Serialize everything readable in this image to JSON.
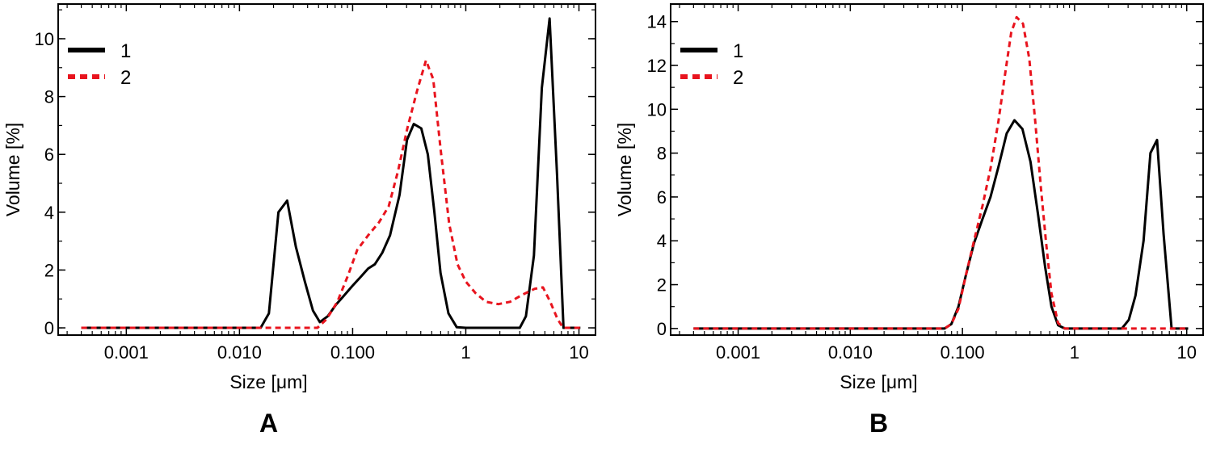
{
  "chart_data": [
    {
      "type": "line",
      "panel_label": "A",
      "xlabel": "Size [μm]",
      "ylabel": "Volume [%]",
      "xscale": "log",
      "xlim": [
        0.00025,
        14
      ],
      "ylim": [
        -0.25,
        11.2
      ],
      "xticks": [
        {
          "value": 0.001,
          "label": "0.001"
        },
        {
          "value": 0.01,
          "label": "0.010"
        },
        {
          "value": 0.1,
          "label": "0.100"
        },
        {
          "value": 1,
          "label": "1"
        },
        {
          "value": 10,
          "label": "10"
        }
      ],
      "yticks": [
        {
          "value": 0,
          "label": "0"
        },
        {
          "value": 2,
          "label": "2"
        },
        {
          "value": 4,
          "label": "4"
        },
        {
          "value": 6,
          "label": "6"
        },
        {
          "value": 8,
          "label": "8"
        },
        {
          "value": 10,
          "label": "10"
        }
      ],
      "legend_position": "top-left",
      "series": [
        {
          "name": "1",
          "color": "#000000",
          "style": "solid",
          "points": [
            [
              0.0004,
              0
            ],
            [
              0.0154,
              0
            ],
            [
              0.0182,
              0.5
            ],
            [
              0.0221,
              4.0
            ],
            [
              0.0264,
              4.4
            ],
            [
              0.0315,
              2.8
            ],
            [
              0.0378,
              1.6
            ],
            [
              0.0446,
              0.6
            ],
            [
              0.0513,
              0.2
            ],
            [
              0.0602,
              0.4
            ],
            [
              0.0712,
              0.8
            ],
            [
              0.0832,
              1.1
            ],
            [
              0.0994,
              1.45
            ],
            [
              0.117,
              1.75
            ],
            [
              0.137,
              2.05
            ],
            [
              0.157,
              2.2
            ],
            [
              0.183,
              2.6
            ],
            [
              0.214,
              3.2
            ],
            [
              0.26,
              4.6
            ],
            [
              0.302,
              6.5
            ],
            [
              0.347,
              7.05
            ],
            [
              0.404,
              6.9
            ],
            [
              0.462,
              6.0
            ],
            [
              0.528,
              4.0
            ],
            [
              0.598,
              1.9
            ],
            [
              0.703,
              0.5
            ],
            [
              0.832,
              0.02
            ],
            [
              1.0,
              0
            ],
            [
              3.0,
              0
            ],
            [
              3.4,
              0.4
            ],
            [
              4.0,
              2.5
            ],
            [
              4.7,
              8.3
            ],
            [
              5.5,
              10.7
            ],
            [
              6.4,
              5.3
            ],
            [
              7.3,
              0
            ],
            [
              10.3,
              0
            ]
          ]
        },
        {
          "name": "2",
          "color": "#e8141e",
          "style": "dashed",
          "points": [
            [
              0.0004,
              0
            ],
            [
              0.0489,
              0
            ],
            [
              0.0589,
              0.3
            ],
            [
              0.0733,
              0.9
            ],
            [
              0.0907,
              1.8
            ],
            [
              0.11,
              2.7
            ],
            [
              0.137,
              3.2
            ],
            [
              0.171,
              3.65
            ],
            [
              0.208,
              4.2
            ],
            [
              0.251,
              5.4
            ],
            [
              0.304,
              6.9
            ],
            [
              0.371,
              8.2
            ],
            [
              0.445,
              9.25
            ],
            [
              0.516,
              8.6
            ],
            [
              0.598,
              6.2
            ],
            [
              0.713,
              3.6
            ],
            [
              0.844,
              2.2
            ],
            [
              1.0,
              1.6
            ],
            [
              1.22,
              1.2
            ],
            [
              1.51,
              0.9
            ],
            [
              1.94,
              0.82
            ],
            [
              2.46,
              0.9
            ],
            [
              3.18,
              1.15
            ],
            [
              4.06,
              1.35
            ],
            [
              4.81,
              1.4
            ],
            [
              5.58,
              0.9
            ],
            [
              6.48,
              0.3
            ],
            [
              7.25,
              0
            ],
            [
              10.3,
              0
            ]
          ]
        }
      ]
    },
    {
      "type": "line",
      "panel_label": "B",
      "xlabel": "Size [μm]",
      "ylabel": "Volume [%]",
      "xscale": "log",
      "xlim": [
        0.00025,
        14
      ],
      "ylim": [
        -0.3,
        14.8
      ],
      "xticks": [
        {
          "value": 0.001,
          "label": "0.001"
        },
        {
          "value": 0.01,
          "label": "0.010"
        },
        {
          "value": 0.1,
          "label": "0.100"
        },
        {
          "value": 1,
          "label": "1"
        },
        {
          "value": 10,
          "label": "10"
        }
      ],
      "yticks": [
        {
          "value": 0,
          "label": "0"
        },
        {
          "value": 2,
          "label": "2"
        },
        {
          "value": 4,
          "label": "4"
        },
        {
          "value": 6,
          "label": "6"
        },
        {
          "value": 8,
          "label": "8"
        },
        {
          "value": 10,
          "label": "10"
        },
        {
          "value": 12,
          "label": "12"
        },
        {
          "value": 14,
          "label": "14"
        }
      ],
      "legend_position": "top-left",
      "series": [
        {
          "name": "1",
          "color": "#000000",
          "style": "solid",
          "points": [
            [
              0.0004,
              0
            ],
            [
              0.0693,
              0
            ],
            [
              0.0796,
              0.2
            ],
            [
              0.0921,
              1.0
            ],
            [
              0.107,
              2.4
            ],
            [
              0.127,
              3.9
            ],
            [
              0.151,
              5.0
            ],
            [
              0.178,
              6.0
            ],
            [
              0.21,
              7.4
            ],
            [
              0.248,
              8.9
            ],
            [
              0.291,
              9.5
            ],
            [
              0.343,
              9.1
            ],
            [
              0.405,
              7.6
            ],
            [
              0.472,
              5.2
            ],
            [
              0.546,
              2.8
            ],
            [
              0.622,
              1.0
            ],
            [
              0.712,
              0.15
            ],
            [
              0.818,
              0
            ],
            [
              2.64,
              0
            ],
            [
              3.05,
              0.4
            ],
            [
              3.49,
              1.5
            ],
            [
              4.12,
              4.0
            ],
            [
              4.75,
              8.0
            ],
            [
              5.44,
              8.6
            ],
            [
              6.22,
              4.3
            ],
            [
              7.33,
              0
            ],
            [
              10.3,
              0
            ]
          ]
        },
        {
          "name": "2",
          "color": "#e8141e",
          "style": "dashed",
          "points": [
            [
              0.0004,
              0
            ],
            [
              0.0693,
              0
            ],
            [
              0.0796,
              0.2
            ],
            [
              0.0921,
              0.9
            ],
            [
              0.107,
              2.4
            ],
            [
              0.127,
              4.0
            ],
            [
              0.151,
              5.6
            ],
            [
              0.178,
              7.3
            ],
            [
              0.21,
              9.5
            ],
            [
              0.24,
              11.6
            ],
            [
              0.272,
              13.5
            ],
            [
              0.304,
              14.2
            ],
            [
              0.347,
              13.9
            ],
            [
              0.395,
              12.3
            ],
            [
              0.445,
              9.5
            ],
            [
              0.501,
              6.4
            ],
            [
              0.557,
              3.9
            ],
            [
              0.622,
              1.6
            ],
            [
              0.712,
              0.25
            ],
            [
              0.818,
              0
            ],
            [
              10.3,
              0
            ]
          ]
        }
      ]
    }
  ]
}
